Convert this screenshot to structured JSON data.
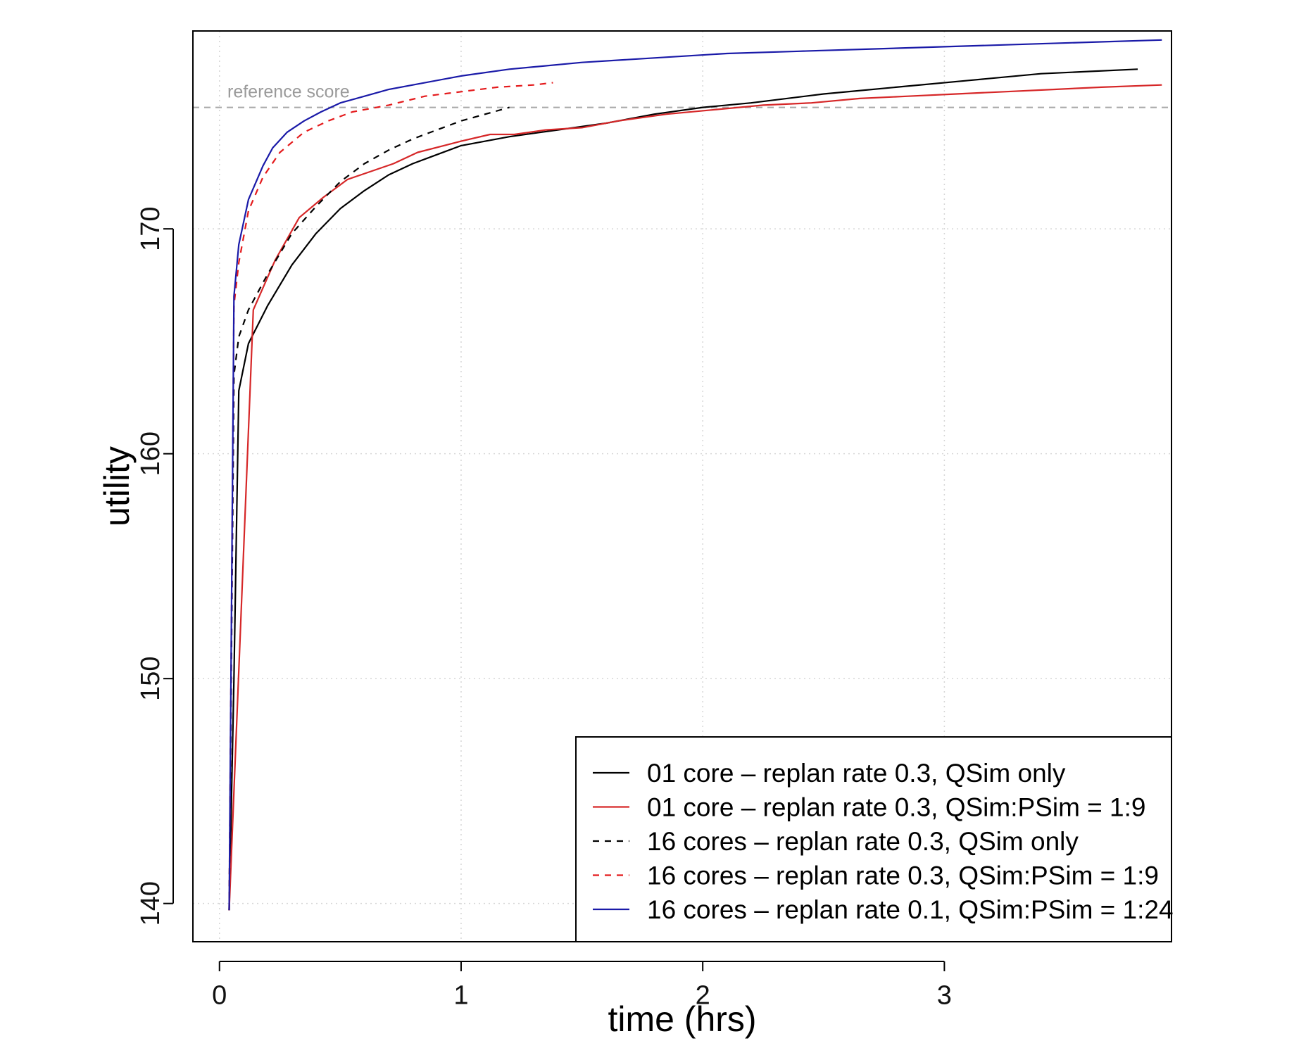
{
  "chart_data": {
    "type": "line",
    "title": "",
    "xlabel": "time (hrs)",
    "ylabel": "utility",
    "xlim": [
      -0.11,
      3.94
    ],
    "ylim": [
      138.3,
      178.8
    ],
    "xticks": [
      0,
      1,
      2,
      3
    ],
    "yticks": [
      140,
      150,
      160,
      170
    ],
    "grid": true,
    "legend_position": "bottom-right",
    "reference_line": {
      "label": "reference score",
      "y": 175.4
    },
    "series": [
      {
        "name": "01 core  – replan rate 0.3, QSim only",
        "color": "#000000",
        "dash": "solid",
        "points": [
          [
            0.04,
            139.7
          ],
          [
            0.06,
            150
          ],
          [
            0.08,
            162.8
          ],
          [
            0.12,
            164.9
          ],
          [
            0.2,
            166.6
          ],
          [
            0.3,
            168.4
          ],
          [
            0.4,
            169.8
          ],
          [
            0.5,
            170.9
          ],
          [
            0.6,
            171.7
          ],
          [
            0.7,
            172.4
          ],
          [
            0.8,
            172.9
          ],
          [
            0.9,
            173.3
          ],
          [
            1.0,
            173.7
          ],
          [
            1.2,
            174.1
          ],
          [
            1.4,
            174.4
          ],
          [
            1.6,
            174.7
          ],
          [
            1.8,
            175.1
          ],
          [
            2.0,
            175.4
          ],
          [
            2.2,
            175.6
          ],
          [
            2.5,
            176.0
          ],
          [
            2.8,
            176.3
          ],
          [
            3.1,
            176.6
          ],
          [
            3.4,
            176.9
          ],
          [
            3.6,
            177.0
          ],
          [
            3.8,
            177.1
          ]
        ]
      },
      {
        "name": "01 core  – replan rate 0.3, QSim:PSim = 1:9",
        "color": "#d62728",
        "dash": "solid",
        "points": [
          [
            0.04,
            139.7
          ],
          [
            0.14,
            166.4
          ],
          [
            0.23,
            168.6
          ],
          [
            0.33,
            170.5
          ],
          [
            0.43,
            171.4
          ],
          [
            0.53,
            172.2
          ],
          [
            0.72,
            172.9
          ],
          [
            0.82,
            173.4
          ],
          [
            1.0,
            173.9
          ],
          [
            1.12,
            174.2
          ],
          [
            1.22,
            174.2
          ],
          [
            1.35,
            174.4
          ],
          [
            1.5,
            174.5
          ],
          [
            1.65,
            174.8
          ],
          [
            1.85,
            175.1
          ],
          [
            2.05,
            175.3
          ],
          [
            2.25,
            175.5
          ],
          [
            2.45,
            175.6
          ],
          [
            2.65,
            175.8
          ],
          [
            2.85,
            175.9
          ],
          [
            3.05,
            176.0
          ],
          [
            3.25,
            176.1
          ],
          [
            3.45,
            176.2
          ],
          [
            3.65,
            176.3
          ],
          [
            3.9,
            176.4
          ]
        ]
      },
      {
        "name": "16 cores – replan rate 0.3, QSim only",
        "color": "#000000",
        "dash": "dashed",
        "points": [
          [
            0.04,
            139.7
          ],
          [
            0.06,
            163.5
          ],
          [
            0.08,
            165.2
          ],
          [
            0.12,
            166.4
          ],
          [
            0.2,
            168.0
          ],
          [
            0.3,
            169.8
          ],
          [
            0.4,
            171.0
          ],
          [
            0.5,
            172.1
          ],
          [
            0.6,
            172.9
          ],
          [
            0.7,
            173.5
          ],
          [
            0.8,
            174.0
          ],
          [
            0.9,
            174.4
          ],
          [
            1.0,
            174.8
          ],
          [
            1.1,
            175.1
          ],
          [
            1.2,
            175.4
          ]
        ]
      },
      {
        "name": "16 cores – replan rate 0.3, QSim:PSim = 1:9",
        "color": "#e41a1c",
        "dash": "dashed",
        "points": [
          [
            0.04,
            139.7
          ],
          [
            0.06,
            166.6
          ],
          [
            0.08,
            168.5
          ],
          [
            0.12,
            170.8
          ],
          [
            0.18,
            172.3
          ],
          [
            0.25,
            173.4
          ],
          [
            0.35,
            174.3
          ],
          [
            0.45,
            174.8
          ],
          [
            0.55,
            175.2
          ],
          [
            0.7,
            175.5
          ],
          [
            0.85,
            175.9
          ],
          [
            1.0,
            176.1
          ],
          [
            1.15,
            176.3
          ],
          [
            1.3,
            176.4
          ],
          [
            1.38,
            176.5
          ]
        ]
      },
      {
        "name": "16 cores – replan rate 0.1, QSim:PSim = 1:24",
        "color": "#1a1aa8",
        "dash": "solid",
        "points": [
          [
            0.04,
            139.7
          ],
          [
            0.06,
            167.0
          ],
          [
            0.08,
            169.3
          ],
          [
            0.12,
            171.3
          ],
          [
            0.18,
            172.8
          ],
          [
            0.22,
            173.6
          ],
          [
            0.28,
            174.3
          ],
          [
            0.35,
            174.8
          ],
          [
            0.42,
            175.2
          ],
          [
            0.5,
            175.6
          ],
          [
            0.6,
            175.9
          ],
          [
            0.7,
            176.2
          ],
          [
            0.8,
            176.4
          ],
          [
            1.0,
            176.8
          ],
          [
            1.2,
            177.1
          ],
          [
            1.5,
            177.4
          ],
          [
            1.8,
            177.6
          ],
          [
            2.1,
            177.8
          ],
          [
            2.4,
            177.9
          ],
          [
            2.7,
            178.0
          ],
          [
            3.0,
            178.1
          ],
          [
            3.3,
            178.2
          ],
          [
            3.6,
            178.3
          ],
          [
            3.9,
            178.4
          ]
        ]
      }
    ]
  }
}
